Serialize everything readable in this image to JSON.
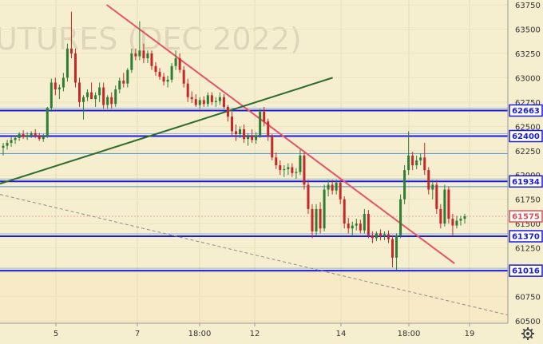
{
  "chart_data": {
    "type": "candlestick",
    "watermark": "UTURES (DEC 2022)",
    "ylim": [
      60500,
      63750
    ],
    "y_ticks": [
      63750,
      63500,
      63250,
      63000,
      62750,
      62500,
      62250,
      62000,
      61750,
      61500,
      61250,
      61000,
      60750,
      60500
    ],
    "x_ticks": [
      "5",
      "7",
      "18:00",
      "12",
      "14",
      "18:00",
      "19"
    ],
    "current_price": 61575,
    "colors": {
      "background": "#f6efcf",
      "up_candle": "#2e7d32",
      "down_candle": "#c62828",
      "horizontal_level": "#1a1adb",
      "thin_level": "#4a90d9",
      "downtrend_line": "#e8506a",
      "uptrend_line": "#2f6b2f",
      "dashed_line": "#8c8c8c",
      "current_price_tag": "#e05050"
    },
    "levels": [
      {
        "value": 62663,
        "label": "62663",
        "style": "strong"
      },
      {
        "value": 62400,
        "label": "62400",
        "style": "strong"
      },
      {
        "value": 62220,
        "style": "thin"
      },
      {
        "value": 61934,
        "label": "61934",
        "style": "strong"
      },
      {
        "value": 61880,
        "style": "thin"
      },
      {
        "value": 61370,
        "label": "61370",
        "style": "strong"
      },
      {
        "value": 61016,
        "label": "61016",
        "style": "strong"
      }
    ],
    "candles": [
      {
        "o": 62280,
        "h": 62330,
        "l": 62200,
        "c": 62300
      },
      {
        "o": 62300,
        "h": 62360,
        "l": 62260,
        "c": 62330
      },
      {
        "o": 62330,
        "h": 62390,
        "l": 62290,
        "c": 62360
      },
      {
        "o": 62360,
        "h": 62410,
        "l": 62320,
        "c": 62380
      },
      {
        "o": 62380,
        "h": 62440,
        "l": 62350,
        "c": 62420
      },
      {
        "o": 62420,
        "h": 62460,
        "l": 62370,
        "c": 62390
      },
      {
        "o": 62390,
        "h": 62440,
        "l": 62360,
        "c": 62410
      },
      {
        "o": 62410,
        "h": 62450,
        "l": 62380,
        "c": 62430
      },
      {
        "o": 62430,
        "h": 62470,
        "l": 62380,
        "c": 62400
      },
      {
        "o": 62400,
        "h": 62430,
        "l": 62350,
        "c": 62370
      },
      {
        "o": 62370,
        "h": 62420,
        "l": 62340,
        "c": 62400
      },
      {
        "o": 62400,
        "h": 62700,
        "l": 62380,
        "c": 62690
      },
      {
        "o": 62690,
        "h": 62990,
        "l": 62650,
        "c": 62950
      },
      {
        "o": 62950,
        "h": 63000,
        "l": 62820,
        "c": 62880
      },
      {
        "o": 62880,
        "h": 62930,
        "l": 62780,
        "c": 62900
      },
      {
        "o": 62900,
        "h": 63050,
        "l": 62860,
        "c": 63000
      },
      {
        "o": 63000,
        "h": 63350,
        "l": 62960,
        "c": 63300
      },
      {
        "o": 63300,
        "h": 63680,
        "l": 63200,
        "c": 63250
      },
      {
        "o": 63250,
        "h": 63300,
        "l": 62900,
        "c": 62950
      },
      {
        "o": 62950,
        "h": 63000,
        "l": 62700,
        "c": 62750
      },
      {
        "o": 62750,
        "h": 62820,
        "l": 62570,
        "c": 62800
      },
      {
        "o": 62800,
        "h": 62880,
        "l": 62760,
        "c": 62850
      },
      {
        "o": 62850,
        "h": 62950,
        "l": 62800,
        "c": 62780
      },
      {
        "o": 62780,
        "h": 62850,
        "l": 62700,
        "c": 62820
      },
      {
        "o": 62820,
        "h": 62950,
        "l": 62750,
        "c": 62900
      },
      {
        "o": 62900,
        "h": 62950,
        "l": 62680,
        "c": 62720
      },
      {
        "o": 62720,
        "h": 62820,
        "l": 62680,
        "c": 62800
      },
      {
        "o": 62800,
        "h": 62850,
        "l": 62680,
        "c": 62730
      },
      {
        "o": 62730,
        "h": 62920,
        "l": 62700,
        "c": 62880
      },
      {
        "o": 62880,
        "h": 63000,
        "l": 62840,
        "c": 62970
      },
      {
        "o": 62970,
        "h": 63050,
        "l": 62900,
        "c": 62940
      },
      {
        "o": 62940,
        "h": 63100,
        "l": 62900,
        "c": 63080
      },
      {
        "o": 63080,
        "h": 63300,
        "l": 63050,
        "c": 63250
      },
      {
        "o": 63250,
        "h": 63300,
        "l": 63180,
        "c": 63220
      },
      {
        "o": 63220,
        "h": 63580,
        "l": 63180,
        "c": 63280
      },
      {
        "o": 63280,
        "h": 63350,
        "l": 63150,
        "c": 63200
      },
      {
        "o": 63200,
        "h": 63280,
        "l": 63150,
        "c": 63250
      },
      {
        "o": 63250,
        "h": 63280,
        "l": 63080,
        "c": 63120
      },
      {
        "o": 63120,
        "h": 63160,
        "l": 63020,
        "c": 63060
      },
      {
        "o": 63060,
        "h": 63100,
        "l": 62980,
        "c": 63010
      },
      {
        "o": 63010,
        "h": 63050,
        "l": 62920,
        "c": 62960
      },
      {
        "o": 62960,
        "h": 63020,
        "l": 62900,
        "c": 62980
      },
      {
        "o": 62980,
        "h": 63150,
        "l": 62950,
        "c": 63120
      },
      {
        "o": 63120,
        "h": 63280,
        "l": 63080,
        "c": 63200
      },
      {
        "o": 63200,
        "h": 63250,
        "l": 63050,
        "c": 63080
      },
      {
        "o": 63080,
        "h": 63120,
        "l": 62900,
        "c": 62940
      },
      {
        "o": 62940,
        "h": 62990,
        "l": 62750,
        "c": 62800
      },
      {
        "o": 62800,
        "h": 62860,
        "l": 62740,
        "c": 62780
      },
      {
        "o": 62780,
        "h": 62830,
        "l": 62700,
        "c": 62720
      },
      {
        "o": 62720,
        "h": 62800,
        "l": 62680,
        "c": 62770
      },
      {
        "o": 62770,
        "h": 62810,
        "l": 62700,
        "c": 62730
      },
      {
        "o": 62730,
        "h": 62850,
        "l": 62700,
        "c": 62820
      },
      {
        "o": 62820,
        "h": 62850,
        "l": 62720,
        "c": 62750
      },
      {
        "o": 62750,
        "h": 62800,
        "l": 62700,
        "c": 62760
      },
      {
        "o": 62760,
        "h": 62850,
        "l": 62720,
        "c": 62800
      },
      {
        "o": 62800,
        "h": 62830,
        "l": 62680,
        "c": 62700
      },
      {
        "o": 62700,
        "h": 62720,
        "l": 62550,
        "c": 62600
      },
      {
        "o": 62600,
        "h": 62650,
        "l": 62400,
        "c": 62450
      },
      {
        "o": 62450,
        "h": 62520,
        "l": 62350,
        "c": 62420
      },
      {
        "o": 62420,
        "h": 62500,
        "l": 62380,
        "c": 62470
      },
      {
        "o": 62470,
        "h": 62520,
        "l": 62330,
        "c": 62370
      },
      {
        "o": 62370,
        "h": 62430,
        "l": 62300,
        "c": 62400
      },
      {
        "o": 62400,
        "h": 62470,
        "l": 62330,
        "c": 62360
      },
      {
        "o": 62360,
        "h": 62440,
        "l": 62320,
        "c": 62410
      },
      {
        "o": 62410,
        "h": 62680,
        "l": 62380,
        "c": 62650
      },
      {
        "o": 62650,
        "h": 62700,
        "l": 62500,
        "c": 62550
      },
      {
        "o": 62550,
        "h": 62580,
        "l": 62350,
        "c": 62400
      },
      {
        "o": 62400,
        "h": 62420,
        "l": 62150,
        "c": 62180
      },
      {
        "o": 62180,
        "h": 62230,
        "l": 62060,
        "c": 62100
      },
      {
        "o": 62100,
        "h": 62150,
        "l": 62000,
        "c": 62050
      },
      {
        "o": 62050,
        "h": 62100,
        "l": 61980,
        "c": 62060
      },
      {
        "o": 62060,
        "h": 62120,
        "l": 62000,
        "c": 62080
      },
      {
        "o": 62080,
        "h": 62120,
        "l": 61980,
        "c": 62020
      },
      {
        "o": 62020,
        "h": 62070,
        "l": 61960,
        "c": 62030
      },
      {
        "o": 62030,
        "h": 62260,
        "l": 62000,
        "c": 62200
      },
      {
        "o": 62200,
        "h": 62230,
        "l": 61850,
        "c": 61900
      },
      {
        "o": 61900,
        "h": 61950,
        "l": 61600,
        "c": 61650
      },
      {
        "o": 61650,
        "h": 61700,
        "l": 61350,
        "c": 61420
      },
      {
        "o": 61420,
        "h": 61700,
        "l": 61380,
        "c": 61650
      },
      {
        "o": 61650,
        "h": 61720,
        "l": 61400,
        "c": 61450
      },
      {
        "o": 61450,
        "h": 61900,
        "l": 61420,
        "c": 61850
      },
      {
        "o": 61850,
        "h": 61950,
        "l": 61780,
        "c": 61900
      },
      {
        "o": 61900,
        "h": 61950,
        "l": 61800,
        "c": 61840
      },
      {
        "o": 61840,
        "h": 61950,
        "l": 61800,
        "c": 61920
      },
      {
        "o": 61920,
        "h": 61950,
        "l": 61700,
        "c": 61750
      },
      {
        "o": 61750,
        "h": 61780,
        "l": 61450,
        "c": 61500
      },
      {
        "o": 61500,
        "h": 61560,
        "l": 61400,
        "c": 61450
      },
      {
        "o": 61450,
        "h": 61520,
        "l": 61380,
        "c": 61480
      },
      {
        "o": 61480,
        "h": 61550,
        "l": 61430,
        "c": 61500
      },
      {
        "o": 61500,
        "h": 61540,
        "l": 61400,
        "c": 61430
      },
      {
        "o": 61430,
        "h": 61650,
        "l": 61400,
        "c": 61600
      },
      {
        "o": 61600,
        "h": 61640,
        "l": 61350,
        "c": 61380
      },
      {
        "o": 61380,
        "h": 61420,
        "l": 61300,
        "c": 61350
      },
      {
        "o": 61350,
        "h": 61420,
        "l": 61320,
        "c": 61400
      },
      {
        "o": 61400,
        "h": 61440,
        "l": 61330,
        "c": 61370
      },
      {
        "o": 61370,
        "h": 61420,
        "l": 61330,
        "c": 61390
      },
      {
        "o": 61390,
        "h": 61430,
        "l": 61300,
        "c": 61340
      },
      {
        "o": 61340,
        "h": 61380,
        "l": 61050,
        "c": 61150
      },
      {
        "o": 61150,
        "h": 61400,
        "l": 61020,
        "c": 61380
      },
      {
        "o": 61380,
        "h": 61800,
        "l": 61350,
        "c": 61750
      },
      {
        "o": 61750,
        "h": 62100,
        "l": 61700,
        "c": 62050
      },
      {
        "o": 62050,
        "h": 62450,
        "l": 62000,
        "c": 62200
      },
      {
        "o": 62200,
        "h": 62240,
        "l": 62050,
        "c": 62100
      },
      {
        "o": 62100,
        "h": 62200,
        "l": 62060,
        "c": 62150
      },
      {
        "o": 62150,
        "h": 62220,
        "l": 62100,
        "c": 62180
      },
      {
        "o": 62180,
        "h": 62330,
        "l": 62000,
        "c": 62050
      },
      {
        "o": 62050,
        "h": 62080,
        "l": 61800,
        "c": 61850
      },
      {
        "o": 61850,
        "h": 61950,
        "l": 61750,
        "c": 61900
      },
      {
        "o": 61900,
        "h": 61950,
        "l": 61600,
        "c": 61650
      },
      {
        "o": 61650,
        "h": 61700,
        "l": 61450,
        "c": 61500
      },
      {
        "o": 61500,
        "h": 61900,
        "l": 61470,
        "c": 61850
      },
      {
        "o": 61850,
        "h": 61880,
        "l": 61500,
        "c": 61550
      },
      {
        "o": 61550,
        "h": 61600,
        "l": 61380,
        "c": 61480
      },
      {
        "o": 61480,
        "h": 61580,
        "l": 61450,
        "c": 61530
      },
      {
        "o": 61530,
        "h": 61580,
        "l": 61480,
        "c": 61550
      },
      {
        "o": 61550,
        "h": 61600,
        "l": 61500,
        "c": 61575
      }
    ],
    "trendlines": [
      {
        "role": "downtrend",
        "x0": 0.21,
        "y0": 63750,
        "x1": 0.895,
        "y1": 61090
      },
      {
        "role": "uptrend",
        "x0": 0.0,
        "y0": 61910,
        "x1": 0.655,
        "y1": 63000
      },
      {
        "role": "dashed",
        "x0": 0.0,
        "y0": 61800,
        "x1": 1.0,
        "y1": 60560
      }
    ]
  }
}
